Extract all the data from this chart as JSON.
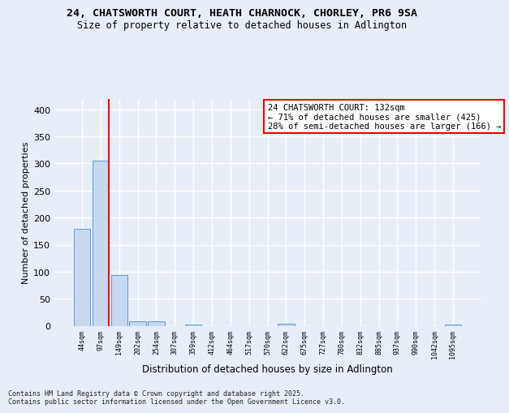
{
  "title_line1": "24, CHATSWORTH COURT, HEATH CHARNOCK, CHORLEY, PR6 9SA",
  "title_line2": "Size of property relative to detached houses in Adlington",
  "xlabel": "Distribution of detached houses by size in Adlington",
  "ylabel": "Number of detached properties",
  "categories": [
    "44sqm",
    "97sqm",
    "149sqm",
    "202sqm",
    "254sqm",
    "307sqm",
    "359sqm",
    "412sqm",
    "464sqm",
    "517sqm",
    "570sqm",
    "622sqm",
    "675sqm",
    "727sqm",
    "780sqm",
    "832sqm",
    "885sqm",
    "937sqm",
    "990sqm",
    "1042sqm",
    "1095sqm"
  ],
  "values": [
    180,
    305,
    94,
    8,
    9,
    0,
    3,
    0,
    0,
    0,
    0,
    4,
    0,
    0,
    0,
    0,
    0,
    0,
    0,
    0,
    3
  ],
  "bar_color": "#c8d8ef",
  "bar_edge_color": "#5b9bd5",
  "highlight_bar_index": 1,
  "highlight_edge_color": "#ff0000",
  "annotation_box_text": "24 CHATSWORTH COURT: 132sqm\n← 71% of detached houses are smaller (425)\n28% of semi-detached houses are larger (166) →",
  "annotation_box_facecolor": "white",
  "annotation_box_edgecolor": "#ff0000",
  "vline_color": "#ff0000",
  "footer_text": "Contains HM Land Registry data © Crown copyright and database right 2025.\nContains public sector information licensed under the Open Government Licence v3.0.",
  "bg_color": "#e8eef8",
  "plot_bg_color": "#e8eef8",
  "grid_color": "white",
  "ylim": [
    0,
    420
  ],
  "yticks": [
    0,
    50,
    100,
    150,
    200,
    250,
    300,
    350,
    400
  ]
}
